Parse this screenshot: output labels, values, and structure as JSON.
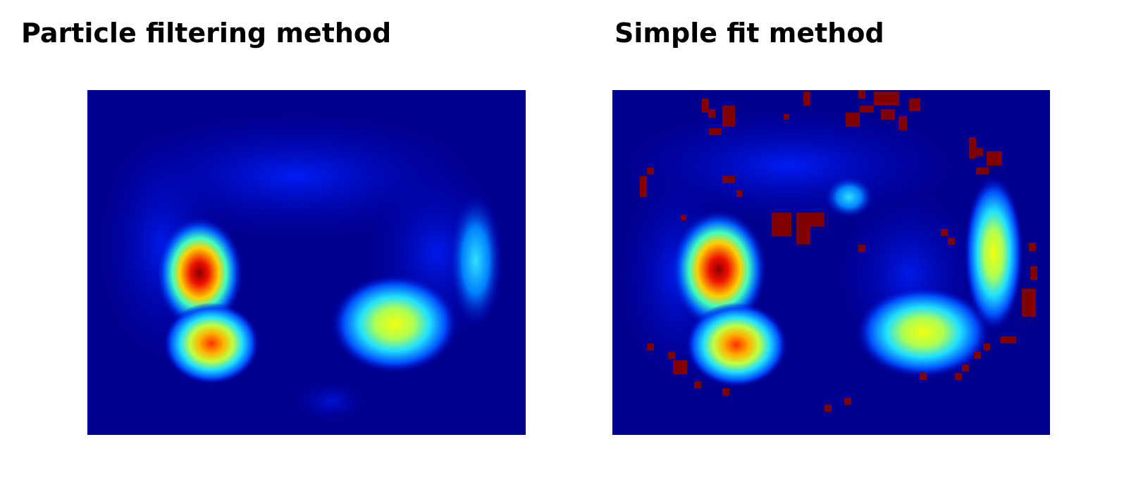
{
  "panels": [
    {
      "title": "Particle filtering method"
    },
    {
      "title": "Simple fit method"
    }
  ]
}
